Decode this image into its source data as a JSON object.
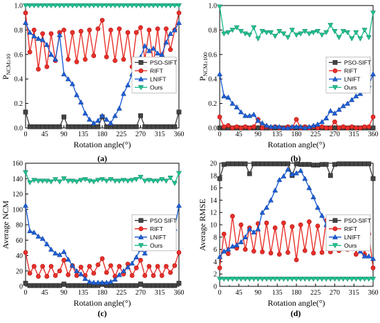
{
  "chart_data": [
    {
      "type": "line",
      "panel_label": "(a)",
      "xlabel": "Rotation angle(°)",
      "ylabel_main": "P",
      "ylabel_sub": "NCM≥10",
      "xlim": [
        0,
        360
      ],
      "ylim": [
        0,
        1.0
      ],
      "xticks": [
        0,
        45,
        90,
        135,
        180,
        225,
        270,
        315,
        360
      ],
      "yticks": [
        0,
        0.2,
        0.4,
        0.6,
        0.8,
        1.0
      ],
      "ytick_labels": [
        "0.0",
        "0.2",
        "0.4",
        "0.6",
        "0.8",
        "1.0"
      ],
      "legend_position": "center-right",
      "x": [
        0,
        10,
        20,
        30,
        40,
        50,
        60,
        70,
        80,
        90,
        100,
        110,
        120,
        130,
        140,
        150,
        160,
        170,
        180,
        190,
        200,
        210,
        220,
        230,
        240,
        250,
        260,
        270,
        280,
        290,
        300,
        310,
        320,
        330,
        340,
        350,
        360
      ],
      "series": [
        {
          "name": "PSO-SIFT",
          "color": "#444444",
          "marker": "square",
          "values": [
            0.13,
            0.01,
            0.01,
            0.01,
            0.01,
            0.01,
            0.01,
            0.01,
            0.01,
            0.09,
            0.01,
            0.01,
            0.01,
            0.01,
            0.01,
            0.01,
            0.01,
            0.01,
            0.09,
            0.01,
            0.01,
            0.01,
            0.01,
            0.01,
            0.01,
            0.01,
            0.01,
            0.1,
            0.01,
            0.01,
            0.01,
            0.01,
            0.01,
            0.01,
            0.01,
            0.01,
            0.13
          ]
        },
        {
          "name": "RIFT",
          "color": "#e8302a",
          "marker": "circle",
          "values": [
            0.94,
            0.62,
            0.8,
            0.48,
            0.77,
            0.5,
            0.77,
            0.55,
            0.78,
            0.8,
            0.56,
            0.78,
            0.54,
            0.79,
            0.56,
            0.8,
            0.59,
            0.81,
            0.88,
            0.58,
            0.8,
            0.55,
            0.81,
            0.56,
            0.78,
            0.5,
            0.78,
            0.82,
            0.56,
            0.8,
            0.52,
            0.81,
            0.5,
            0.81,
            0.64,
            0.8,
            0.94
          ]
        },
        {
          "name": "LNIFT",
          "color": "#1f5fd6",
          "marker": "triangle-up",
          "values": [
            0.86,
            0.78,
            0.75,
            0.73,
            0.72,
            0.68,
            0.6,
            0.56,
            0.76,
            0.44,
            0.4,
            0.36,
            0.27,
            0.21,
            0.12,
            0.07,
            0.04,
            0.06,
            0.1,
            0.07,
            0.04,
            0.1,
            0.16,
            0.28,
            0.35,
            0.44,
            0.52,
            0.58,
            0.67,
            0.63,
            0.65,
            0.61,
            0.6,
            0.7,
            0.77,
            0.8,
            0.86
          ]
        },
        {
          "name": "Ours",
          "color": "#20c090",
          "marker": "triangle-down",
          "values": [
            1.0,
            1.0,
            1.0,
            1.0,
            1.0,
            1.0,
            1.0,
            1.0,
            1.0,
            1.0,
            1.0,
            1.0,
            1.0,
            1.0,
            1.0,
            1.0,
            1.0,
            1.0,
            1.0,
            1.0,
            1.0,
            1.0,
            1.0,
            1.0,
            1.0,
            1.0,
            1.0,
            1.0,
            1.0,
            1.0,
            1.0,
            1.0,
            1.0,
            1.0,
            1.0,
            1.0,
            1.0
          ]
        }
      ]
    },
    {
      "type": "line",
      "panel_label": "(b)",
      "xlabel": "Rotation angle(°)",
      "ylabel_main": "P",
      "ylabel_sub": "NCM≥100",
      "xlim": [
        0,
        360
      ],
      "ylim": [
        0,
        1.0
      ],
      "xticks": [
        0,
        45,
        90,
        135,
        180,
        225,
        270,
        315,
        360
      ],
      "yticks": [
        0,
        0.2,
        0.4,
        0.6,
        0.8,
        1.0
      ],
      "ytick_labels": [
        "0.0",
        "0.2",
        "0.4",
        "0.6",
        "0.8",
        "1.0"
      ],
      "legend_position": "center-right",
      "x": [
        0,
        10,
        20,
        30,
        40,
        50,
        60,
        70,
        80,
        90,
        100,
        110,
        120,
        130,
        140,
        150,
        160,
        170,
        180,
        190,
        200,
        210,
        220,
        230,
        240,
        250,
        260,
        270,
        280,
        290,
        300,
        310,
        320,
        330,
        340,
        350,
        360
      ],
      "series": [
        {
          "name": "PSO-SIFT",
          "color": "#444444",
          "marker": "square",
          "values": [
            0.0,
            0.0,
            0.0,
            0.0,
            0.0,
            0.0,
            0.0,
            0.0,
            0.0,
            0.0,
            0.0,
            0.0,
            0.0,
            0.0,
            0.0,
            0.0,
            0.0,
            0.0,
            0.0,
            0.0,
            0.0,
            0.0,
            0.0,
            0.0,
            0.0,
            0.0,
            0.0,
            0.0,
            0.0,
            0.0,
            0.0,
            0.0,
            0.0,
            0.0,
            0.0,
            0.0,
            0.0
          ]
        },
        {
          "name": "RIFT",
          "color": "#e8302a",
          "marker": "circle",
          "values": [
            0.09,
            0.01,
            0.02,
            0.0,
            0.01,
            0.0,
            0.01,
            0.0,
            0.01,
            0.07,
            0.0,
            0.01,
            0.0,
            0.01,
            0.0,
            0.0,
            0.01,
            0.0,
            0.07,
            0.0,
            0.01,
            0.0,
            0.01,
            0.0,
            0.01,
            0.0,
            0.0,
            0.05,
            0.0,
            0.01,
            0.0,
            0.01,
            0.0,
            0.0,
            0.01,
            0.01,
            0.09
          ]
        },
        {
          "name": "LNIFT",
          "color": "#1f5fd6",
          "marker": "triangle-up",
          "values": [
            0.44,
            0.26,
            0.25,
            0.2,
            0.17,
            0.13,
            0.1,
            0.1,
            0.11,
            0.06,
            0.04,
            0.02,
            0.01,
            0.01,
            0.01,
            0.0,
            0.0,
            0.01,
            0.01,
            0.01,
            0.0,
            0.01,
            0.02,
            0.03,
            0.05,
            0.08,
            0.14,
            0.12,
            0.15,
            0.18,
            0.2,
            0.23,
            0.26,
            0.28,
            0.32,
            0.35,
            0.44
          ]
        },
        {
          "name": "Ours",
          "color": "#20c090",
          "marker": "triangle-down",
          "values": [
            0.99,
            0.77,
            0.78,
            0.8,
            0.82,
            0.79,
            0.77,
            0.76,
            0.82,
            0.73,
            0.79,
            0.78,
            0.78,
            0.75,
            0.79,
            0.77,
            0.74,
            0.8,
            0.76,
            0.77,
            0.79,
            0.77,
            0.78,
            0.79,
            0.76,
            0.78,
            0.84,
            0.79,
            0.74,
            0.79,
            0.78,
            0.73,
            0.78,
            0.73,
            0.8,
            0.74,
            0.94
          ]
        }
      ]
    },
    {
      "type": "line",
      "panel_label": "(c)",
      "xlabel": "Rotation angle(°)",
      "ylabel": "Average NCM",
      "xlim": [
        0,
        360
      ],
      "ylim": [
        0,
        160
      ],
      "xticks": [
        0,
        45,
        90,
        135,
        180,
        225,
        270,
        315,
        360
      ],
      "yticks": [
        0,
        20,
        40,
        60,
        80,
        100,
        120,
        140,
        160
      ],
      "ytick_labels": [
        "0",
        "20",
        "40",
        "60",
        "80",
        "100",
        "120",
        "140",
        "160"
      ],
      "legend_position": "center-right",
      "x": [
        0,
        10,
        20,
        30,
        40,
        50,
        60,
        70,
        80,
        90,
        100,
        110,
        120,
        130,
        140,
        150,
        160,
        170,
        180,
        190,
        200,
        210,
        220,
        230,
        240,
        250,
        260,
        270,
        280,
        290,
        300,
        310,
        320,
        330,
        340,
        350,
        360
      ],
      "series": [
        {
          "name": "PSO SIFT",
          "color": "#444444",
          "marker": "square",
          "values": [
            4,
            1,
            1,
            1,
            1,
            1,
            1,
            1,
            1,
            3,
            1,
            1,
            1,
            1,
            1,
            1,
            1,
            1,
            3,
            1,
            1,
            1,
            1,
            1,
            1,
            1,
            1,
            3,
            1,
            1,
            1,
            1,
            1,
            1,
            1,
            1,
            4
          ]
        },
        {
          "name": "RIFT",
          "color": "#e8302a",
          "marker": "circle",
          "values": [
            44,
            17,
            26,
            13,
            26,
            13,
            26,
            14,
            20,
            34,
            15,
            27,
            14,
            25,
            14,
            26,
            17,
            28,
            36,
            18,
            27,
            13,
            26,
            16,
            29,
            14,
            24,
            34,
            14,
            26,
            14,
            26,
            14,
            26,
            18,
            27,
            44
          ]
        },
        {
          "name": "LNIFT",
          "color": "#1f5fd6",
          "marker": "triangle-up",
          "values": [
            105,
            72,
            70,
            65,
            62,
            55,
            48,
            43,
            41,
            45,
            35,
            27,
            20,
            16,
            10,
            6,
            5,
            5,
            5,
            5,
            6,
            9,
            15,
            20,
            25,
            30,
            38,
            48,
            43,
            50,
            57,
            60,
            65,
            70,
            72,
            75,
            105
          ]
        },
        {
          "name": "Ours",
          "color": "#20c090",
          "marker": "triangle-down",
          "values": [
            148,
            135,
            138,
            137,
            137,
            137,
            136,
            139,
            136,
            140,
            137,
            137,
            136,
            138,
            139,
            137,
            136,
            138,
            139,
            137,
            139,
            137,
            137,
            138,
            137,
            138,
            139,
            142,
            137,
            138,
            137,
            137,
            139,
            137,
            141,
            134,
            147
          ]
        }
      ]
    },
    {
      "type": "line",
      "panel_label": "(d)",
      "xlabel": "Rotation angle(°)",
      "ylabel": "Average RMSE",
      "xlim": [
        0,
        360
      ],
      "ylim": [
        0,
        20
      ],
      "xticks": [
        0,
        45,
        90,
        135,
        180,
        225,
        270,
        315,
        360
      ],
      "yticks": [
        0,
        2,
        4,
        6,
        8,
        10,
        12,
        14,
        16,
        18,
        20
      ],
      "ytick_labels": [
        "0",
        "2",
        "4",
        "6",
        "8",
        "10",
        "12",
        "14",
        "16",
        "18",
        "20"
      ],
      "legend_position": "center-right",
      "x": [
        0,
        10,
        20,
        30,
        40,
        50,
        60,
        70,
        80,
        90,
        100,
        110,
        120,
        130,
        140,
        150,
        160,
        170,
        180,
        190,
        200,
        210,
        220,
        230,
        240,
        250,
        260,
        270,
        280,
        290,
        300,
        310,
        320,
        330,
        340,
        350,
        360
      ],
      "series": [
        {
          "name": "PSO-SIFT",
          "color": "#444444",
          "marker": "square",
          "values": [
            17.5,
            19.8,
            19.9,
            19.9,
            19.9,
            19.9,
            19.9,
            18.3,
            19.9,
            19.9,
            19.9,
            19.9,
            19.9,
            19.9,
            19.9,
            19.9,
            19.9,
            18.0,
            19.9,
            19.8,
            19.8,
            19.8,
            19.7,
            19.7,
            19.8,
            19.8,
            18.0,
            19.8,
            19.9,
            19.9,
            19.9,
            19.9,
            19.9,
            19.9,
            19.9,
            19.9,
            17.5
          ]
        },
        {
          "name": "RIFT",
          "color": "#e8302a",
          "marker": "circle",
          "values": [
            3.0,
            8.5,
            5.3,
            11.4,
            6.2,
            10.0,
            6.0,
            9.5,
            5.7,
            10.2,
            5.6,
            10.3,
            5.4,
            9.5,
            5.2,
            10.3,
            5.5,
            9.7,
            4.3,
            10.0,
            5.8,
            10.5,
            5.4,
            9.8,
            5.5,
            10.7,
            5.6,
            9.5,
            5.8,
            10.2,
            6.0,
            10.6,
            5.2,
            8.6,
            5.2,
            8.5,
            3.0
          ]
        },
        {
          "name": "LNIFT",
          "color": "#1f5fd6",
          "marker": "triangle-up",
          "values": [
            4.8,
            5.7,
            6.0,
            6.5,
            6.7,
            7.2,
            8.0,
            9.3,
            8.8,
            9.3,
            12.0,
            12.8,
            14.0,
            15.6,
            17.3,
            17.9,
            19.0,
            18.2,
            18.4,
            18.8,
            17.5,
            16.0,
            14.5,
            12.8,
            11.5,
            10.0,
            8.7,
            7.8,
            8.7,
            7.4,
            7.5,
            7.7,
            6.9,
            5.7,
            4.9,
            4.9,
            4.5
          ]
        },
        {
          "name": "Ours",
          "color": "#20c090",
          "marker": "triangle-down",
          "values": [
            1.2,
            1.2,
            1.2,
            1.2,
            1.2,
            1.2,
            1.2,
            1.2,
            1.2,
            1.2,
            1.2,
            1.2,
            1.2,
            1.2,
            1.2,
            1.2,
            1.2,
            1.2,
            1.2,
            1.2,
            1.2,
            1.2,
            1.2,
            1.2,
            1.2,
            1.2,
            1.2,
            1.2,
            1.2,
            1.2,
            1.2,
            1.2,
            1.2,
            1.2,
            1.2,
            1.2,
            1.2
          ]
        }
      ]
    }
  ]
}
